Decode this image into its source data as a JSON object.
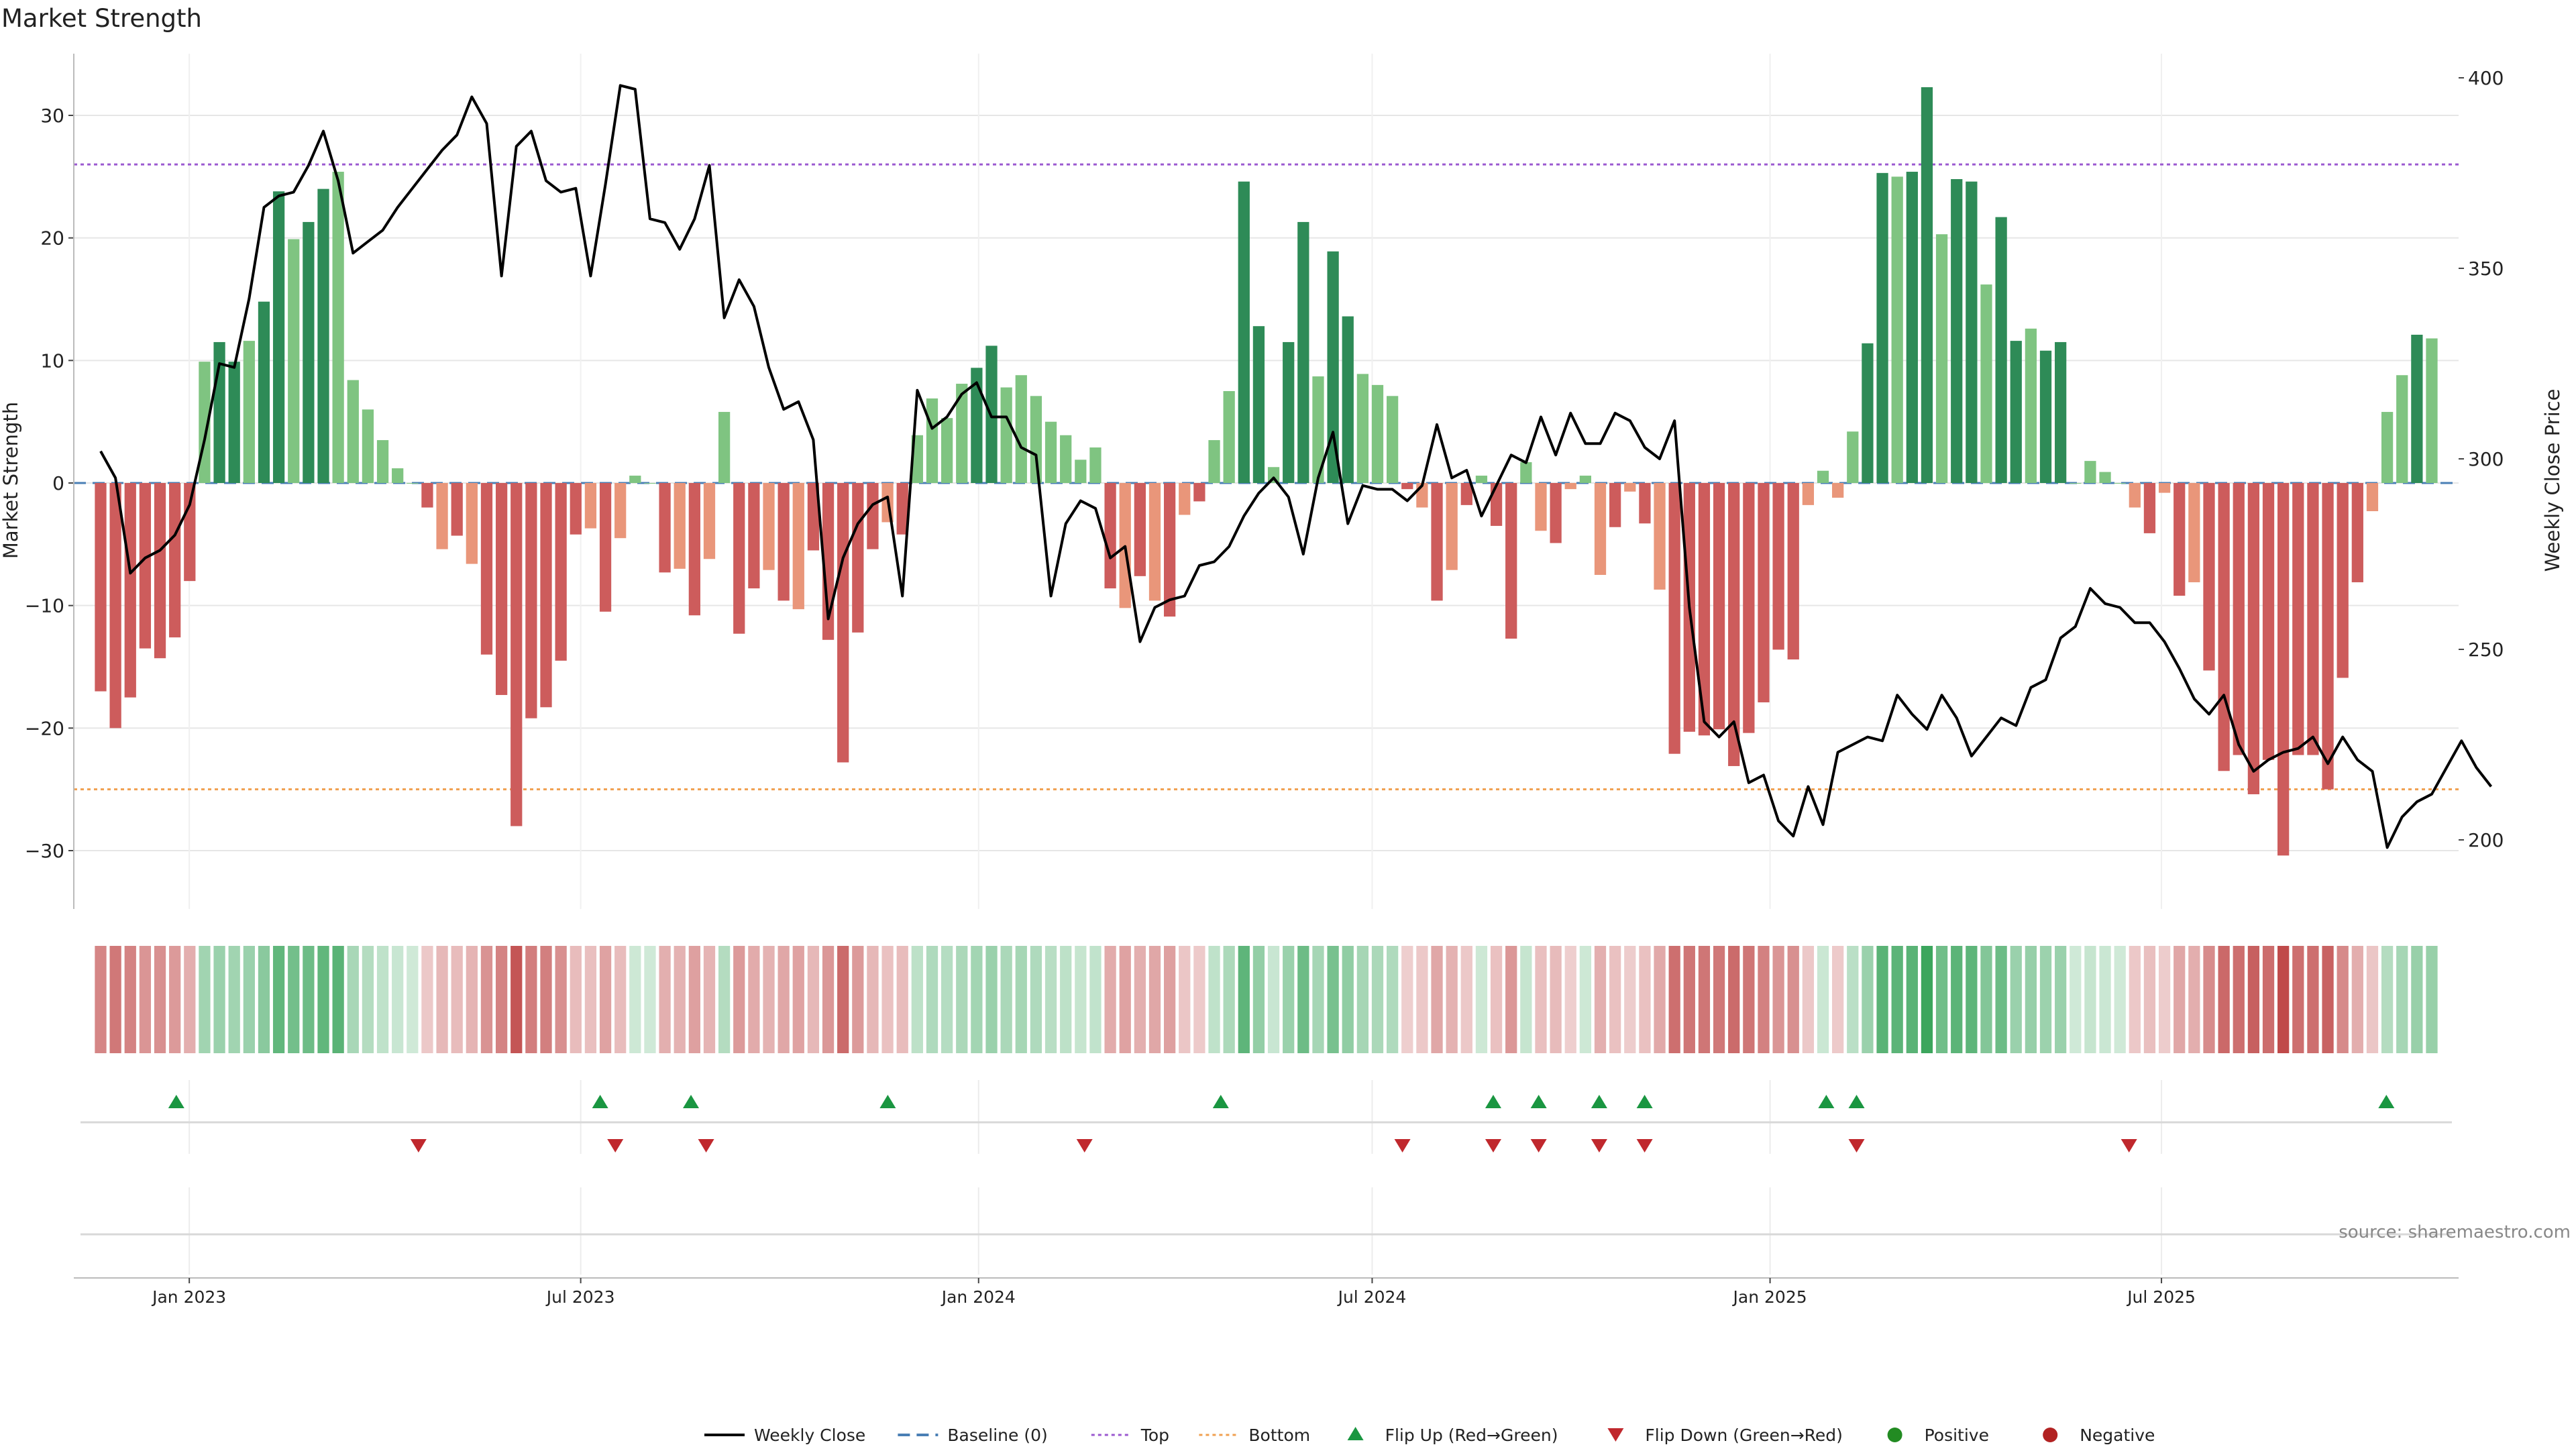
{
  "chart_data": {
    "type": "bar",
    "title": "Market Strength",
    "ylabel": "Market Strength",
    "y2label": "Weekly Close Price",
    "ylim": [
      -35,
      35
    ],
    "y2lim": [
      185,
      405
    ],
    "yticks": [
      -30,
      -20,
      -10,
      0,
      10,
      20,
      30
    ],
    "y2ticks": [
      200,
      250,
      300,
      350,
      400
    ],
    "xaxis": {
      "start": "2022-11-21",
      "end": "2025-11-03",
      "ticks": [
        {
          "label": "Jan 2023",
          "date": "2023-01-01"
        },
        {
          "label": "Jul 2023",
          "date": "2023-07-01"
        },
        {
          "label": "Jan 2024",
          "date": "2024-01-01"
        },
        {
          "label": "Jul 2024",
          "date": "2024-07-01"
        },
        {
          "label": "Jan 2025",
          "date": "2025-01-01"
        },
        {
          "label": "Jul 2025",
          "date": "2025-07-01"
        }
      ]
    },
    "top_level": 26,
    "bottom_level": -25,
    "strength": [
      -17,
      -20,
      -17.5,
      -13.5,
      -14.3,
      -12.6,
      -8,
      9.9,
      11.5,
      9.9,
      11.6,
      14.8,
      23.8,
      19.9,
      21.3,
      24,
      25.4,
      8.4,
      6,
      3.5,
      1.2,
      0,
      -2,
      -5.4,
      -4.3,
      -6.6,
      -14,
      -17.3,
      -28,
      -19.2,
      -18.3,
      -14.5,
      -4.2,
      -3.7,
      -10.5,
      -4.5,
      0.6,
      0,
      -7.3,
      -7,
      -10.8,
      -6.2,
      5.8,
      -12.3,
      -8.6,
      -7.1,
      -9.6,
      -10.3,
      -5.5,
      -12.8,
      -22.8,
      -12.2,
      -5.4,
      -3.2,
      -4.2,
      3.9,
      6.9,
      5.3,
      8.1,
      9.4,
      11.2,
      7.8,
      8.8,
      7.1,
      5,
      3.9,
      1.9,
      2.9,
      -8.6,
      -10.2,
      -7.6,
      -9.6,
      -10.9,
      -2.6,
      -1.5,
      3.5,
      7.5,
      24.6,
      12.8,
      1.3,
      11.5,
      21.3,
      8.7,
      18.9,
      13.6,
      8.9,
      8,
      7.1,
      -0.5,
      -2,
      -9.6,
      -7.1,
      -1.8,
      0.6,
      -3.5,
      -12.7,
      1.7,
      -3.9,
      -4.9,
      -0.5,
      0.6,
      -7.5,
      -3.6,
      -0.7,
      -3.3,
      -8.7,
      -22.1,
      -20.3,
      -20.6,
      -20.1,
      -23.1,
      -20.4,
      -17.9,
      -13.6,
      -14.4,
      -1.8,
      1,
      -1.2,
      4.2,
      11.4,
      25.3,
      25,
      25.4,
      32.3,
      20.3,
      24.8,
      24.6,
      16.2,
      21.7,
      11.6,
      12.6,
      10.8,
      11.5,
      0,
      1.8,
      0.9,
      0,
      -2,
      -4.1,
      -0.8,
      -9.2,
      -8.1,
      -15.3,
      -23.5,
      -22.2,
      -25.4,
      -22.6,
      -30.4,
      -22.2,
      -22.2,
      -25,
      -15.9,
      -8.1,
      -2.3,
      5.8,
      8.8,
      12.1,
      11.8
    ],
    "close": [
      302,
      295,
      270,
      274,
      276,
      280,
      288,
      305,
      325,
      324,
      342,
      366,
      369,
      370,
      377,
      386,
      373,
      354,
      357,
      360,
      366,
      371,
      376,
      381,
      385,
      395,
      388,
      348,
      382,
      386,
      373,
      370,
      371,
      348,
      372,
      398,
      397,
      363,
      362,
      355,
      363,
      377,
      337,
      347,
      340,
      324,
      313,
      315,
      305,
      258,
      274,
      283,
      288,
      290,
      264,
      318,
      308,
      311,
      317,
      320,
      311,
      311,
      303,
      301,
      264,
      283,
      289,
      287,
      274,
      277,
      252,
      261,
      263,
      264,
      272,
      273,
      277,
      285,
      291,
      295,
      290,
      275,
      295,
      307,
      283,
      293,
      292,
      292,
      289,
      293,
      309,
      295,
      297,
      285,
      293,
      301,
      299,
      311,
      301,
      312,
      304,
      304,
      312,
      310,
      303,
      300,
      310,
      261,
      231,
      227,
      231,
      215,
      217,
      205,
      201,
      214,
      204,
      223,
      225,
      227,
      226,
      238,
      233,
      229,
      238,
      232,
      222,
      227,
      232,
      230,
      240,
      242,
      253,
      256,
      266,
      262,
      261,
      257,
      257,
      252,
      245,
      237,
      233,
      238,
      225,
      218,
      221,
      223,
      224,
      227,
      220,
      227,
      221,
      218,
      198,
      206,
      210,
      212,
      219,
      226,
      219,
      214
    ],
    "flip_up": [
      "2022-12-26",
      "2023-07-10",
      "2023-08-21",
      "2023-11-20",
      "2024-04-22",
      "2024-08-26",
      "2024-09-16",
      "2024-10-14",
      "2024-11-04",
      "2025-01-27",
      "2025-02-10",
      "2025-10-13"
    ],
    "flip_down": [
      "2023-04-17",
      "2023-07-17",
      "2023-08-28",
      "2024-02-19",
      "2024-07-15",
      "2024-08-26",
      "2024-09-16",
      "2024-10-14",
      "2024-11-04",
      "2025-02-10",
      "2025-06-16"
    ],
    "legend": [
      {
        "label": "Weekly Close",
        "kind": "line"
      },
      {
        "label": "Baseline (0)",
        "kind": "dash"
      },
      {
        "label": "Top",
        "kind": "dotted-top"
      },
      {
        "label": "Bottom",
        "kind": "dotted-bottom"
      },
      {
        "label": "Flip Up (Red→Green)",
        "kind": "tri-up"
      },
      {
        "label": "Flip Down (Green→Red)",
        "kind": "tri-down"
      },
      {
        "label": "Positive",
        "kind": "dot-pos"
      },
      {
        "label": "Negative",
        "kind": "dot-neg"
      }
    ],
    "legend_position": "bottom-center",
    "source": "source: sharemaestro.com",
    "grid": true
  },
  "colors": {
    "strong_green": "#2e8b57",
    "light_green": "#7fc481",
    "strong_red": "#cd5c5c",
    "light_red": "#e9967a",
    "top_line": "#9b59d0",
    "bottom_line": "#f0a050",
    "baseline": "#4a7fb5",
    "flip_up": "#1a9641",
    "flip_down": "#c0282d",
    "positive_dot": "#228b22",
    "negative_dot": "#b22222",
    "close_line": "#000000"
  }
}
